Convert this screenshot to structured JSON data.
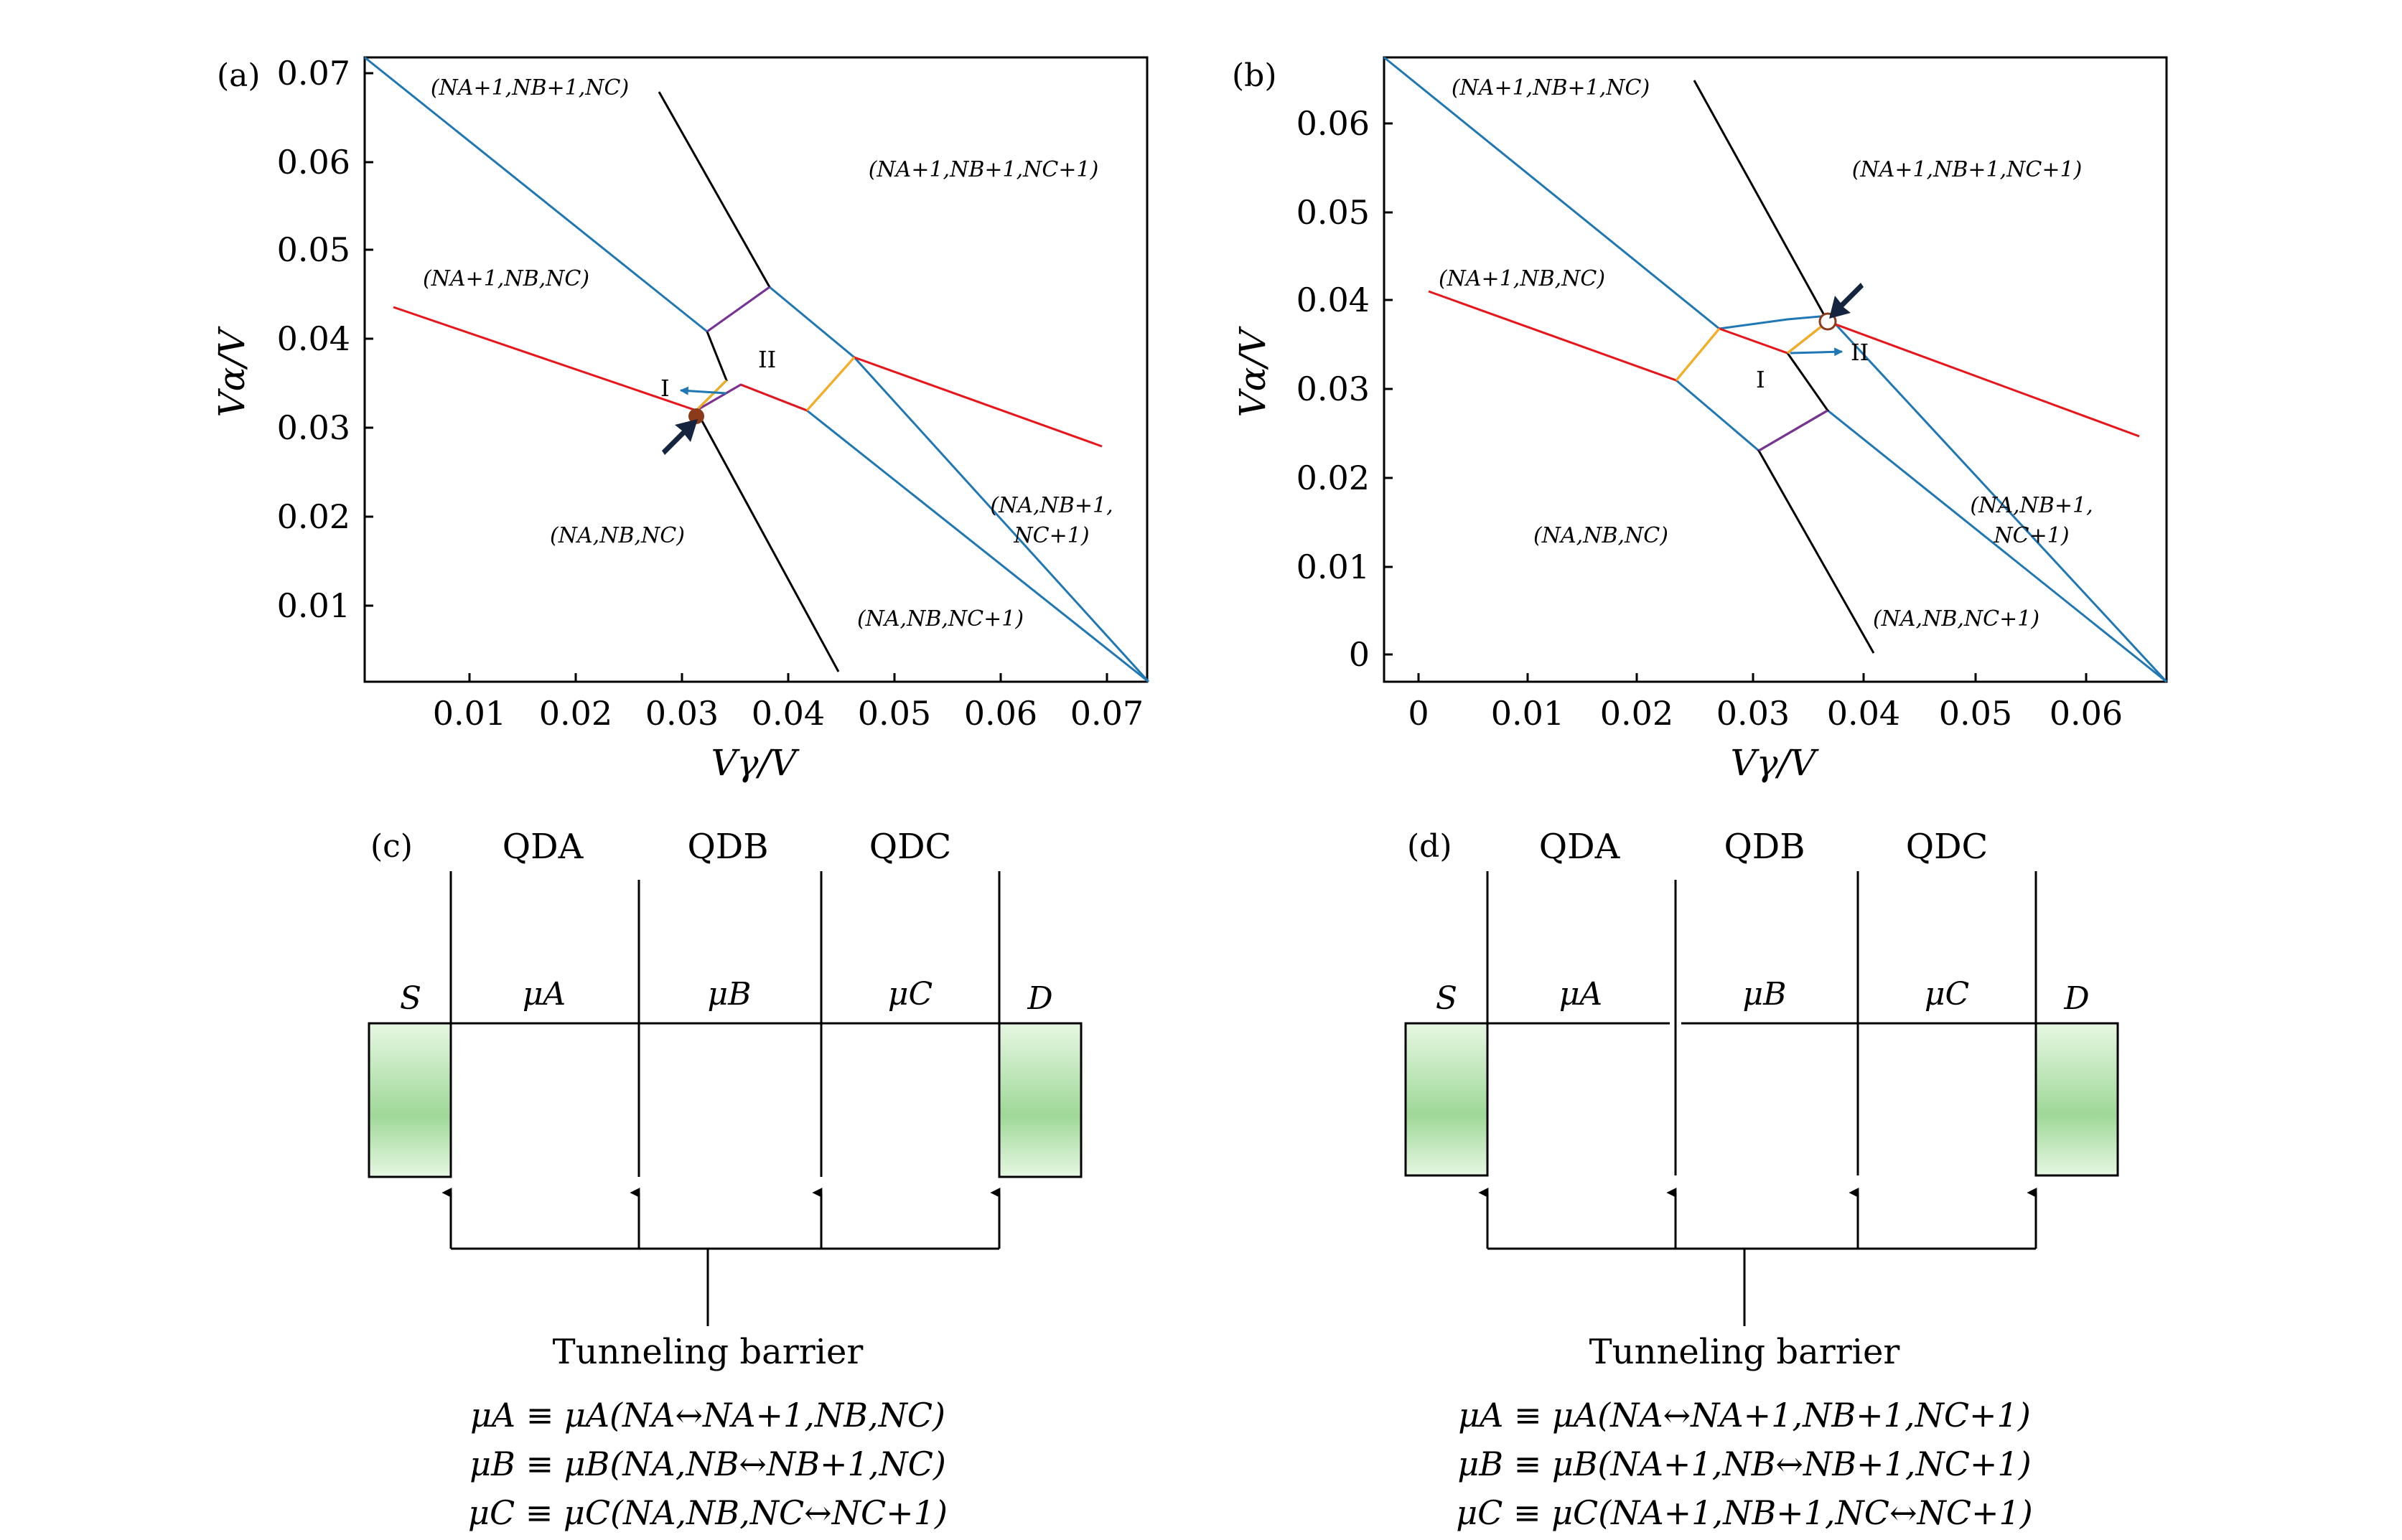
{
  "colors": {
    "blue": "#1f77b4",
    "red": "#e8161b",
    "black": "#000000",
    "purple": "#7b3294",
    "orange": "#f2b21b",
    "electrode_top": "#e6f7e2",
    "electrode_mid": "#9fd898",
    "dot_brown": "#8b3a1a",
    "arrow_navy": "#152540"
  },
  "panel_a": {
    "label": "(a)",
    "xlabel": "Vγ/V",
    "ylabel": "Vα/V",
    "xticks": [
      "0.01",
      "0.02",
      "0.03",
      "0.04",
      "0.05",
      "0.06",
      "0.07"
    ],
    "yticks": [
      "0.01",
      "0.02",
      "0.03",
      "0.04",
      "0.05",
      "0.06",
      "0.07"
    ],
    "regions": {
      "r1": "(NA+1,NB+1,NC)",
      "r2": "(NA+1,NB+1,NC+1)",
      "r3": "(NA+1,NB,NC)",
      "r4": "(NA,NB,NC)",
      "r5a": "(NA,NB+1,",
      "r5b": "NC+1)",
      "r6": "(NA,NB,NC+1)"
    },
    "markers": {
      "m1": "I",
      "m2": "II"
    }
  },
  "panel_b": {
    "label": "(b)",
    "xlabel": "Vγ/V",
    "ylabel": "Vα/V",
    "xticks": [
      "0",
      "0.01",
      "0.02",
      "0.03",
      "0.04",
      "0.05",
      "0.06"
    ],
    "yticks": [
      "0",
      "0.01",
      "0.02",
      "0.03",
      "0.04",
      "0.05",
      "0.06"
    ],
    "regions": {
      "r1": "(NA+1,NB+1,NC)",
      "r2": "(NA+1,NB+1,NC+1)",
      "r3": "(NA+1,NB,NC)",
      "r4": "(NA,NB,NC)",
      "r5a": "(NA,NB+1,",
      "r5b": "NC+1)",
      "r6": "(NA,NB,NC+1)"
    },
    "markers": {
      "m1": "I",
      "m2": "II"
    }
  },
  "panel_c": {
    "label": "(c)",
    "qd_labels": [
      "QDA",
      "QDB",
      "QDC"
    ],
    "source": "S",
    "drain": "D",
    "mu_labels": [
      "μA",
      "μB",
      "μC"
    ],
    "barrier": "Tunneling barrier",
    "equations": [
      "μA ≡ μA(NA↔NA+1,NB,NC)",
      "μB ≡ μB(NA,NB↔NB+1,NC)",
      "μC ≡ μC(NA,NB,NC↔NC+1)"
    ]
  },
  "panel_d": {
    "label": "(d)",
    "qd_labels": [
      "QDA",
      "QDB",
      "QDC"
    ],
    "source": "S",
    "drain": "D",
    "mu_labels": [
      "μA",
      "μB",
      "μC"
    ],
    "barrier": "Tunneling barrier",
    "equations": [
      "μA ≡ μA(NA↔NA+1,NB+1,NC+1)",
      "μB ≡ μB(NA+1,NB↔NB+1,NC+1)",
      "μC ≡ μC(NA+1,NB+1,NC↔NC+1)"
    ]
  }
}
